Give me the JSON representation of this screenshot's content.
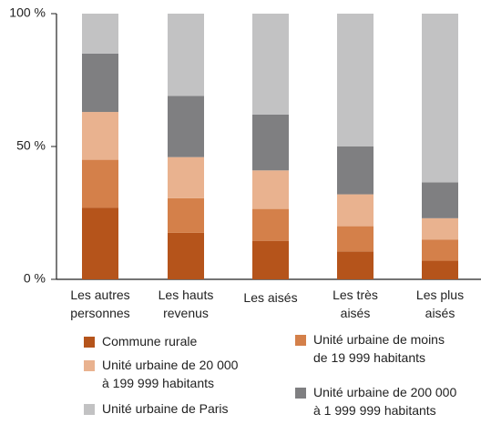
{
  "chart_data": {
    "type": "stacked_bar",
    "categories": [
      "Les autres\npersonnes",
      "Les hauts\nrevenus",
      "Les aisés",
      "Les très\naisés",
      "Les plus\naisés"
    ],
    "series": [
      {
        "name": "Commune rurale",
        "color": "#b5541b",
        "values": [
          27,
          17.5,
          14.5,
          10.5,
          7
        ]
      },
      {
        "name": "Unité urbaine de moins\nde 19 999 habitants",
        "color": "#d4804a",
        "values": [
          18,
          13,
          12,
          9.5,
          8
        ]
      },
      {
        "name": "Unité urbaine de 20 000\nà 199 999 habitants",
        "color": "#e9b28f",
        "values": [
          18,
          15.5,
          14.5,
          12,
          8
        ]
      },
      {
        "name": "Unité urbaine de 200 000\nà 1 999 999 habitants",
        "color": "#7f7f81",
        "values": [
          22,
          23,
          21,
          18,
          13.5
        ]
      },
      {
        "name": "Unité urbaine de Paris",
        "color": "#c2c2c3",
        "values": [
          15,
          31,
          38,
          50,
          63.5
        ]
      }
    ],
    "ylim": [
      0,
      100
    ],
    "yticks": [
      {
        "value": 0,
        "label": "0 %"
      },
      {
        "value": 50,
        "label": "50 %"
      },
      {
        "value": 100,
        "label": "100 %"
      }
    ]
  }
}
